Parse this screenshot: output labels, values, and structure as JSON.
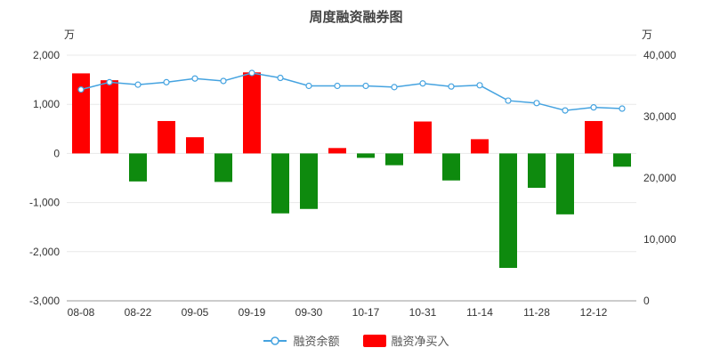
{
  "chart_data": {
    "type": "bar",
    "title": "周度融资融券图",
    "legend_position": "bottom",
    "grid": true,
    "left_axis": {
      "unit": "万",
      "tick_labels": [
        "2,000",
        "1,000",
        "0",
        "-1,000",
        "-2,000",
        "-3,000"
      ]
    },
    "right_axis": {
      "unit": "万",
      "tick_labels": [
        "40,000",
        "30,000",
        "20,000",
        "10,000",
        "0"
      ]
    },
    "x_labels": [
      "08-08",
      "08-22",
      "09-05",
      "09-19",
      "09-30",
      "10-17",
      "10-31",
      "11-14",
      "11-28",
      "12-12"
    ],
    "x_label_every_n_bars": 2,
    "series": [
      {
        "name": "融资余额",
        "type": "line",
        "axis": "right",
        "color": "#45a3e0",
        "values": [
          34400,
          35600,
          35200,
          35600,
          36200,
          35800,
          37100,
          36300,
          35000,
          35000,
          35000,
          34800,
          35400,
          34900,
          35100,
          32600,
          32200,
          31000,
          31500,
          31300
        ]
      },
      {
        "name": "融资净买入",
        "type": "bar",
        "axis": "left",
        "positive_color": "#ff0000",
        "negative_color": "#0e8a0e",
        "values": [
          1630,
          1490,
          -570,
          660,
          330,
          -580,
          1650,
          -1220,
          -1130,
          110,
          -90,
          -240,
          650,
          -550,
          290,
          -2330,
          -700,
          -1240,
          660,
          -270
        ]
      }
    ]
  }
}
